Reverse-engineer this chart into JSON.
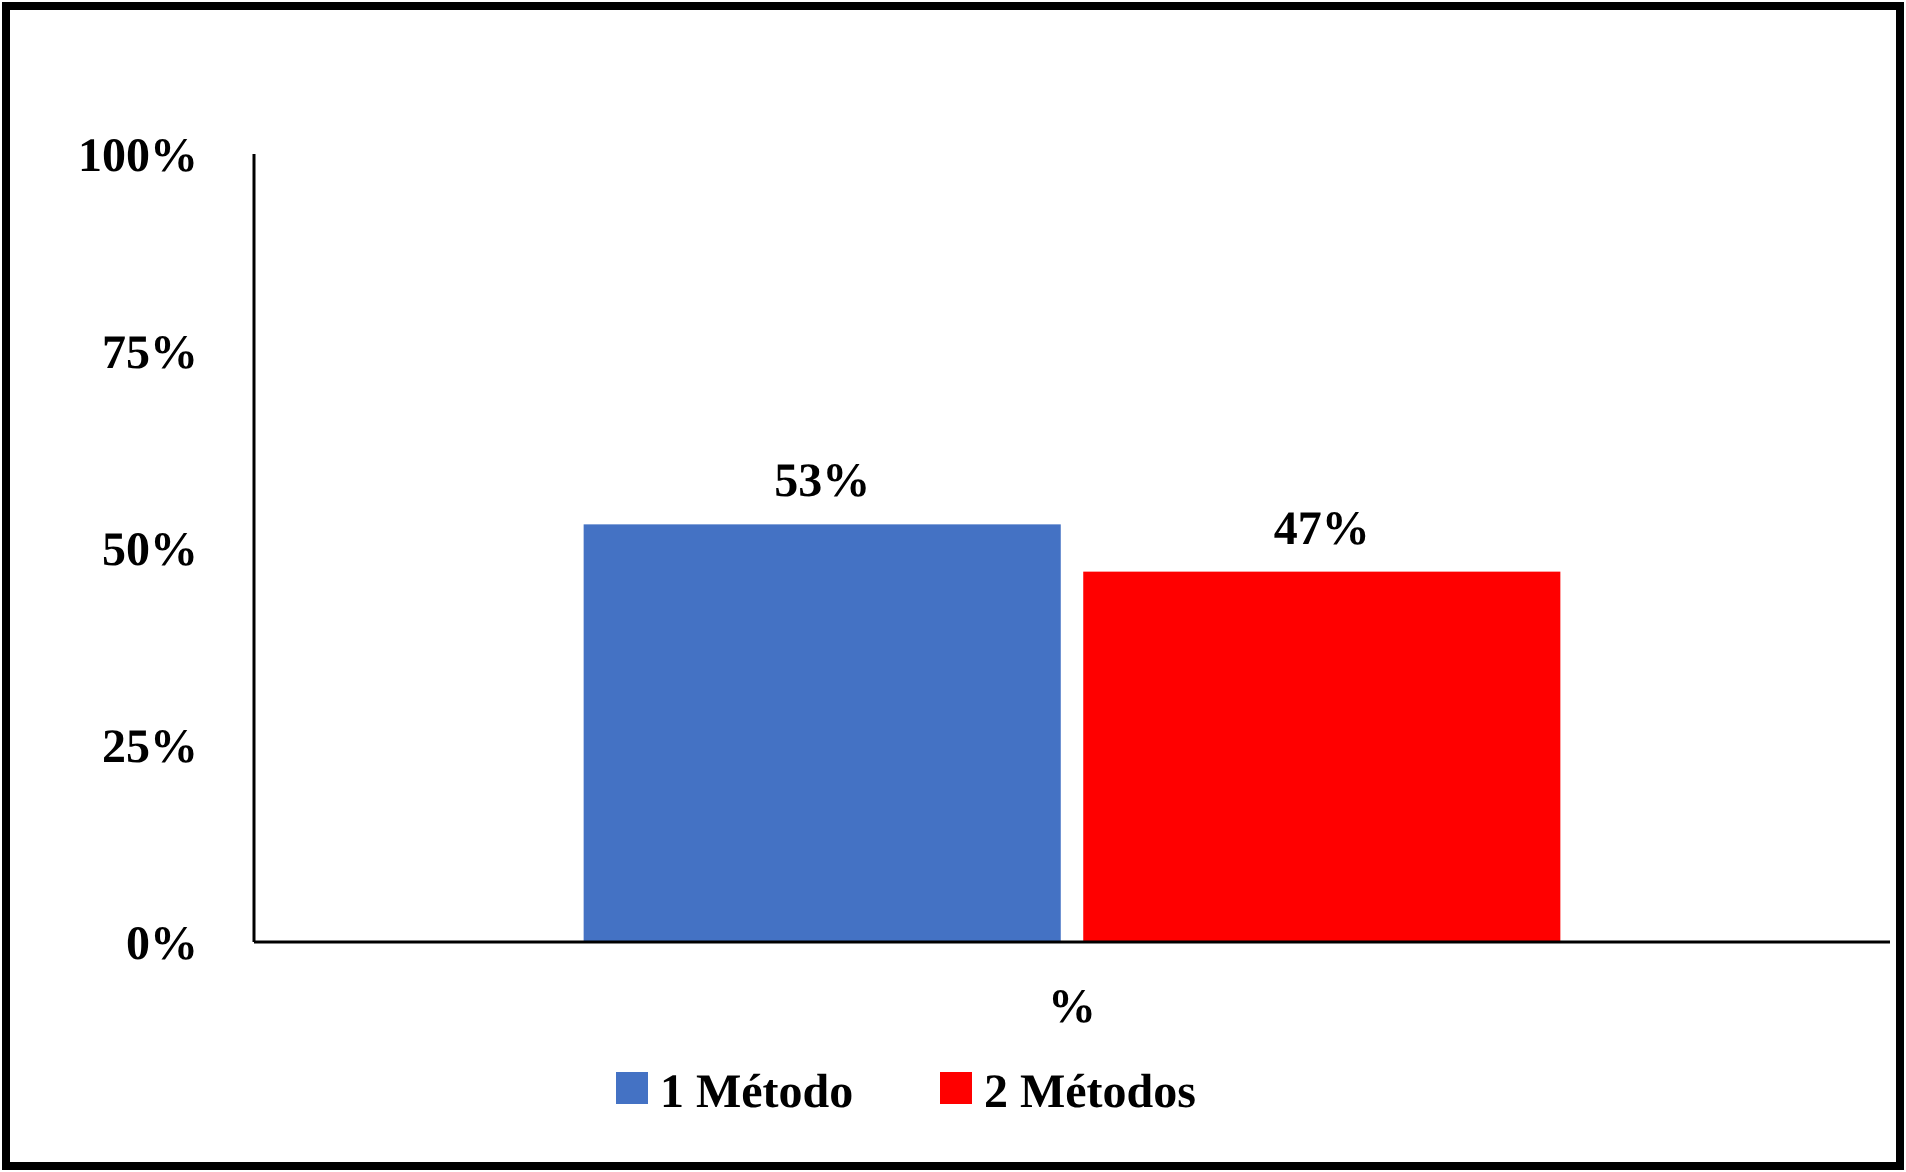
{
  "chart_data": {
    "type": "bar",
    "categories": [
      "%"
    ],
    "series": [
      {
        "name": "1 Método",
        "color": "#4472c4",
        "values": [
          53
        ],
        "value_labels": [
          "53%"
        ]
      },
      {
        "name": "2 Métodos",
        "color": "#ff0000",
        "values": [
          47
        ],
        "value_labels": [
          "47%"
        ]
      }
    ],
    "ylim": [
      0,
      100
    ],
    "yticks": [
      {
        "value": 0,
        "label": "0%"
      },
      {
        "value": 25,
        "label": "25%"
      },
      {
        "value": 50,
        "label": "50%"
      },
      {
        "value": 75,
        "label": "75%"
      },
      {
        "value": 100,
        "label": "100%"
      }
    ],
    "grid": false,
    "legend": "bottom"
  }
}
